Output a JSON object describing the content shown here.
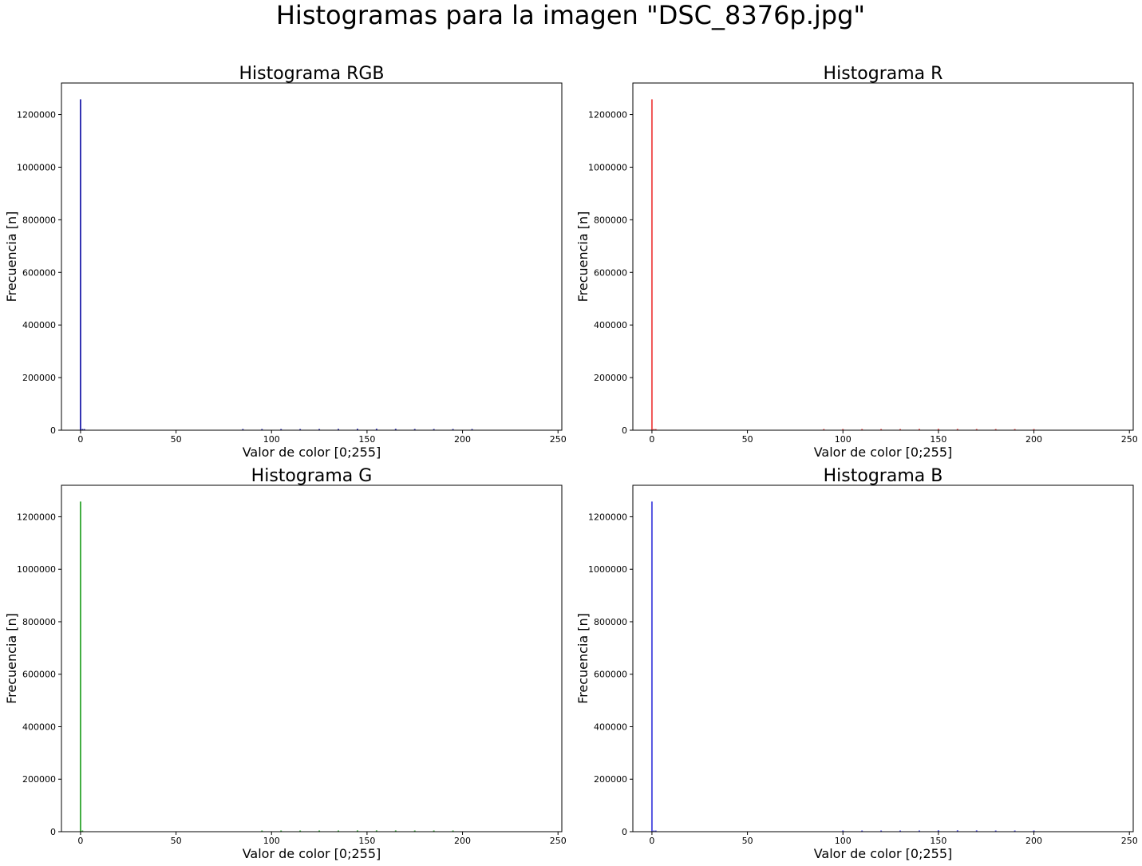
{
  "figure": {
    "suptitle": "Histogramas para la imagen \"DSC_8376p.jpg\""
  },
  "chart_data": [
    {
      "type": "bar",
      "title": "Histograma RGB",
      "xlabel": "Valor de color [0;255]",
      "ylabel": "Frecuencia [n]",
      "xlim": [
        -10,
        252
      ],
      "ylim": [
        0,
        1320000
      ],
      "xticks": [
        0,
        50,
        100,
        150,
        200,
        250
      ],
      "yticks": [
        0,
        200000,
        400000,
        600000,
        800000,
        1000000,
        1200000
      ],
      "color": "#2b2bb0",
      "bar_width": 0.8,
      "bins": [
        0,
        1,
        2,
        85,
        95,
        105,
        115,
        125,
        135,
        145,
        155,
        165,
        175,
        185,
        195,
        205
      ],
      "values": [
        1258000,
        2500,
        1200,
        900,
        1800,
        2500,
        3200,
        4200,
        5000,
        5500,
        5600,
        5300,
        4700,
        3600,
        2000,
        800
      ],
      "grid": false
    },
    {
      "type": "bar",
      "title": "Histograma R",
      "xlabel": "Valor de color [0;255]",
      "ylabel": "Frecuencia [n]",
      "xlim": [
        -10,
        252
      ],
      "ylim": [
        0,
        1320000
      ],
      "xticks": [
        0,
        50,
        100,
        150,
        200,
        250
      ],
      "yticks": [
        0,
        200000,
        400000,
        600000,
        800000,
        1000000,
        1200000
      ],
      "color": "#f05050",
      "bar_width": 0.8,
      "bins": [
        0,
        1,
        2,
        90,
        100,
        110,
        120,
        130,
        140,
        150,
        160,
        170,
        180,
        190,
        200
      ],
      "values": [
        1258000,
        2500,
        1200,
        1000,
        1800,
        2600,
        3500,
        4300,
        5000,
        5300,
        5100,
        4600,
        3800,
        2500,
        900
      ],
      "grid": false
    },
    {
      "type": "bar",
      "title": "Histograma G",
      "xlabel": "Valor de color [0;255]",
      "ylabel": "Frecuencia [n]",
      "xlim": [
        -10,
        252
      ],
      "ylim": [
        0,
        1320000
      ],
      "xticks": [
        0,
        50,
        100,
        150,
        200,
        250
      ],
      "yticks": [
        0,
        200000,
        400000,
        600000,
        800000,
        1000000,
        1200000
      ],
      "color": "#3aaa3a",
      "bar_width": 0.8,
      "bins": [
        0,
        1,
        95,
        105,
        115,
        125,
        135,
        145,
        155,
        165,
        175,
        185,
        195
      ],
      "values": [
        1258000,
        1500,
        900,
        1700,
        2600,
        3500,
        4300,
        5000,
        5200,
        4900,
        4200,
        3000,
        1200
      ],
      "grid": false
    },
    {
      "type": "bar",
      "title": "Histograma B",
      "xlabel": "Valor de color [0;255]",
      "ylabel": "Frecuencia [n]",
      "xlim": [
        -10,
        252
      ],
      "ylim": [
        0,
        1320000
      ],
      "xticks": [
        0,
        50,
        100,
        150,
        200,
        250
      ],
      "yticks": [
        0,
        200000,
        400000,
        600000,
        800000,
        1000000,
        1200000
      ],
      "color": "#5050e0",
      "bar_width": 0.8,
      "bins": [
        0,
        1,
        2,
        100,
        110,
        120,
        130,
        140,
        150,
        160,
        170,
        180,
        190,
        200
      ],
      "values": [
        1258000,
        3000,
        1500,
        1000,
        1900,
        2800,
        3800,
        4700,
        5400,
        5500,
        5100,
        4200,
        2800,
        1000
      ],
      "grid": false
    }
  ]
}
